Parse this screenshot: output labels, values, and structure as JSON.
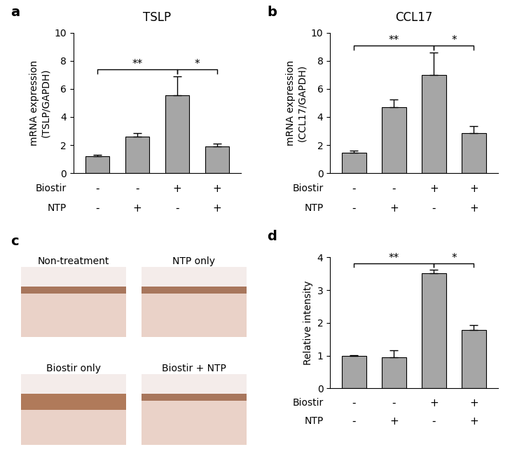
{
  "chart_data": [
    {
      "panel": "a",
      "type": "bar",
      "title": "TSLP",
      "y_label": "mRNA expression\n(TSLP/GAPDH)",
      "categories": [
        null,
        null,
        null,
        null
      ],
      "values": [
        1.2,
        2.6,
        5.55,
        1.9
      ],
      "errors": [
        0.1,
        0.25,
        1.35,
        0.2
      ],
      "color": "#a6a6a6",
      "ylim": [
        0,
        10
      ],
      "yticks": [
        0,
        2,
        4,
        6,
        8,
        10
      ],
      "tick_labels": "y",
      "treatment_rows": [
        {
          "name": "Biostir",
          "marks": [
            "-",
            "-",
            "+",
            "+"
          ]
        },
        {
          "name": "NTP",
          "marks": [
            "-",
            "+",
            "-",
            "+"
          ]
        }
      ],
      "significance": [
        {
          "between": [
            0,
            2
          ],
          "label": "**"
        },
        {
          "between": [
            2,
            3
          ],
          "label": "*"
        }
      ]
    },
    {
      "panel": "b",
      "type": "bar",
      "title": "CCL17",
      "y_label": "mRNA expression\n(CCL17/GAPDH)",
      "categories": [
        null,
        null,
        null,
        null
      ],
      "values": [
        1.45,
        4.7,
        7.0,
        2.85
      ],
      "errors": [
        0.15,
        0.55,
        1.6,
        0.5
      ],
      "color": "#a6a6a6",
      "ylim": [
        0,
        10
      ],
      "yticks": [
        0,
        2,
        4,
        6,
        8,
        10
      ],
      "tick_labels": "y",
      "treatment_rows": [
        {
          "name": "Biostir",
          "marks": [
            "-",
            "-",
            "+",
            "+"
          ]
        },
        {
          "name": "NTP",
          "marks": [
            "-",
            "+",
            "-",
            "+"
          ]
        }
      ],
      "significance": [
        {
          "between": [
            0,
            2
          ],
          "label": "**"
        },
        {
          "between": [
            2,
            3
          ],
          "label": "*"
        }
      ]
    },
    {
      "panel": "d",
      "type": "bar",
      "y_label": "Relative intensity",
      "categories": [
        null,
        null,
        null,
        null
      ],
      "values": [
        1.0,
        0.95,
        3.52,
        1.78
      ],
      "errors": [
        0.02,
        0.22,
        0.1,
        0.15
      ],
      "color": "#a6a6a6",
      "ylim": [
        0,
        4
      ],
      "yticks": [
        0,
        1,
        2,
        3,
        4
      ],
      "tick_labels": "y",
      "treatment_rows": [
        {
          "name": "Biostir",
          "marks": [
            "-",
            "-",
            "+",
            "+"
          ]
        },
        {
          "name": "NTP",
          "marks": [
            "-",
            "+",
            "-",
            "+"
          ]
        }
      ],
      "significance": [
        {
          "between": [
            0,
            2
          ],
          "label": "**"
        },
        {
          "between": [
            2,
            3
          ],
          "label": "*"
        }
      ]
    }
  ],
  "image_panel": {
    "panel": "c",
    "captions": [
      "Non-treatment",
      "NTP only",
      "Biostir only",
      "Biostir + NTP"
    ]
  }
}
